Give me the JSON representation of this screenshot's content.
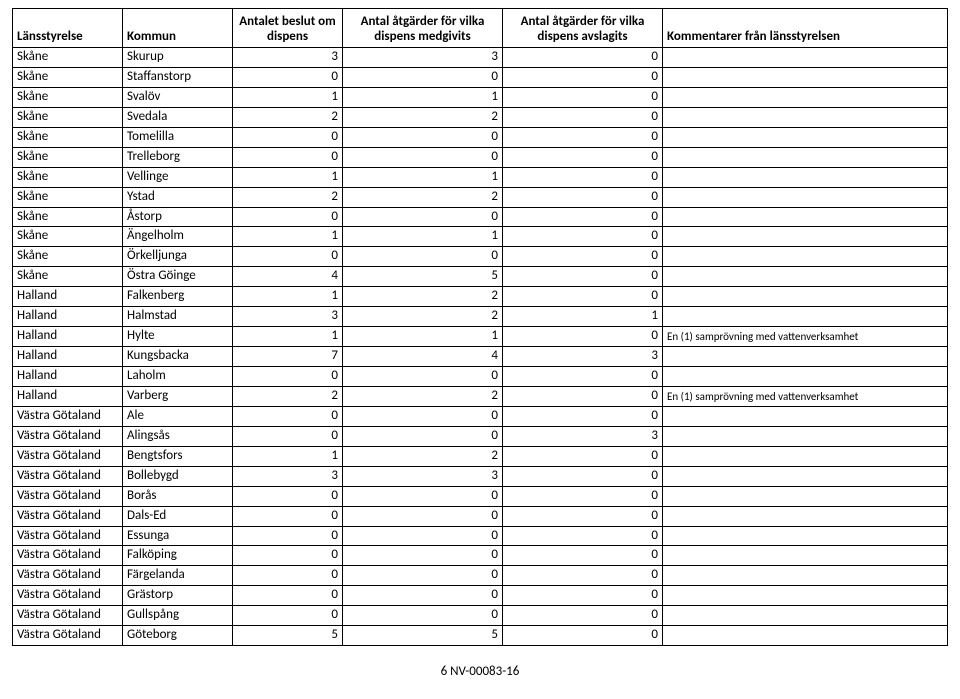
{
  "table": {
    "columns": [
      "Länsstyrelse",
      "Kommun",
      "Antalet beslut om dispens",
      "Antal åtgärder för vilka dispens medgivits",
      "Antal åtgärder för vilka dispens avslagits",
      "Kommentarer från länsstyrelsen"
    ],
    "rows": [
      [
        "Skåne",
        "Skurup",
        "3",
        "3",
        "0",
        ""
      ],
      [
        "Skåne",
        "Staffanstorp",
        "0",
        "0",
        "0",
        ""
      ],
      [
        "Skåne",
        "Svalöv",
        "1",
        "1",
        "0",
        ""
      ],
      [
        "Skåne",
        "Svedala",
        "2",
        "2",
        "0",
        ""
      ],
      [
        "Skåne",
        "Tomelilla",
        "0",
        "0",
        "0",
        ""
      ],
      [
        "Skåne",
        "Trelleborg",
        "0",
        "0",
        "0",
        ""
      ],
      [
        "Skåne",
        "Vellinge",
        "1",
        "1",
        "0",
        ""
      ],
      [
        "Skåne",
        "Ystad",
        "2",
        "2",
        "0",
        ""
      ],
      [
        "Skåne",
        "Åstorp",
        "0",
        "0",
        "0",
        ""
      ],
      [
        "Skåne",
        "Ängelholm",
        "1",
        "1",
        "0",
        ""
      ],
      [
        "Skåne",
        "Örkelljunga",
        "0",
        "0",
        "0",
        ""
      ],
      [
        "Skåne",
        "Östra Göinge",
        "4",
        "5",
        "0",
        ""
      ],
      [
        "Halland",
        "Falkenberg",
        "1",
        "2",
        "0",
        ""
      ],
      [
        "Halland",
        "Halmstad",
        "3",
        "2",
        "1",
        ""
      ],
      [
        "Halland",
        "Hylte",
        "1",
        "1",
        "0",
        "En (1) samprövning med vattenverksamhet"
      ],
      [
        "Halland",
        "Kungsbacka",
        "7",
        "4",
        "3",
        ""
      ],
      [
        "Halland",
        "Laholm",
        "0",
        "0",
        "0",
        ""
      ],
      [
        "Halland",
        "Varberg",
        "2",
        "2",
        "0",
        "En (1) samprövning med vattenverksamhet"
      ],
      [
        "Västra Götaland",
        "Ale",
        "0",
        "0",
        "0",
        ""
      ],
      [
        "Västra Götaland",
        "Alingsås",
        "0",
        "0",
        "3",
        ""
      ],
      [
        "Västra Götaland",
        "Bengtsfors",
        "1",
        "2",
        "0",
        ""
      ],
      [
        "Västra Götaland",
        "Bollebygd",
        "3",
        "3",
        "0",
        ""
      ],
      [
        "Västra Götaland",
        "Borås",
        "0",
        "0",
        "0",
        ""
      ],
      [
        "Västra Götaland",
        "Dals-Ed",
        "0",
        "0",
        "0",
        ""
      ],
      [
        "Västra Götaland",
        "Essunga",
        "0",
        "0",
        "0",
        ""
      ],
      [
        "Västra Götaland",
        "Falköping",
        "0",
        "0",
        "0",
        ""
      ],
      [
        "Västra Götaland",
        "Färgelanda",
        "0",
        "0",
        "0",
        ""
      ],
      [
        "Västra Götaland",
        "Grästorp",
        "0",
        "0",
        "0",
        ""
      ],
      [
        "Västra Götaland",
        "Gullspång",
        "0",
        "0",
        "0",
        ""
      ],
      [
        "Västra Götaland",
        "Göteborg",
        "5",
        "5",
        "0",
        ""
      ]
    ]
  },
  "footer": {
    "page_number": "6",
    "doc_id": "NV-00083-16"
  }
}
